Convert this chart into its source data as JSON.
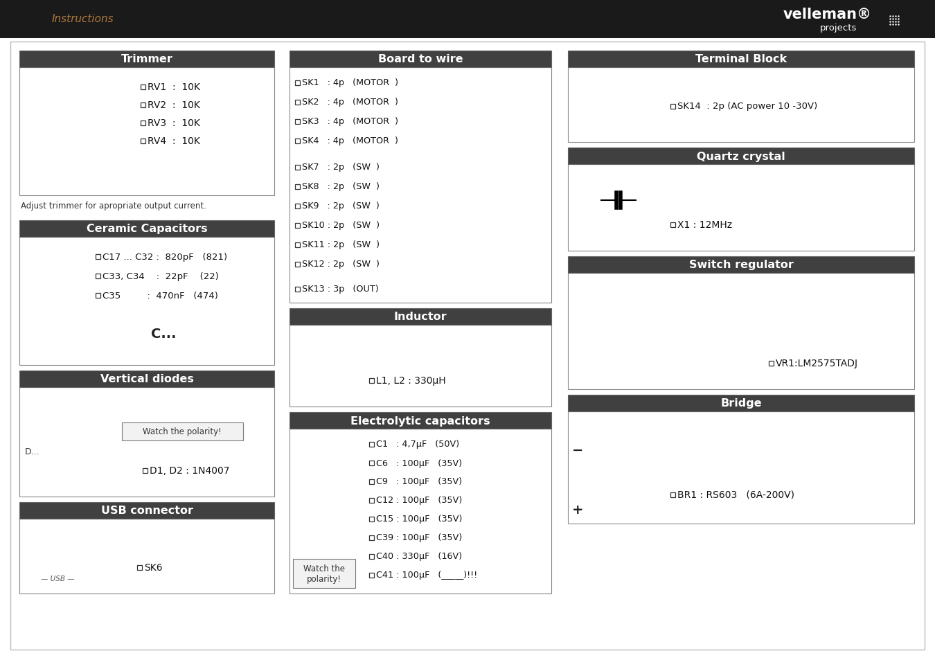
{
  "page_bg": "#ffffff",
  "section_header_bg": "#404040",
  "section_header_text_color": "#ffffff",
  "section_border_color": "#666666",
  "checkbox_color": "#222222",
  "text_color": "#111111",
  "trimmer_title": "Trimmer",
  "trimmer_items": [
    "RV1  :  10K",
    "RV2  :  10K",
    "RV3  :  10K",
    "RV4  :  10K"
  ],
  "trimmer_note": "Adjust trimmer for apropriate output current.",
  "ceramic_title": "Ceramic Capacitors",
  "ceramic_items": [
    "C17 ... C32 :  820pF   (821)",
    "C33, C34    :  22pF    (22)",
    "C35         :  470nF   (474)"
  ],
  "vertical_diodes_title": "Vertical diodes",
  "vertical_diodes_note": "Watch the polarity!",
  "vertical_diodes_items": [
    "D1, D2 : 1N4007"
  ],
  "usb_title": "USB connector",
  "usb_items": [
    "SK6"
  ],
  "board_wire_title": "Board to wire",
  "board_wire_items": [
    "SK1   : 4p   (MOTOR  )",
    "SK2   : 4p   (MOTOR  )",
    "SK3   : 4p   (MOTOR  )",
    "SK4   : 4p   (MOTOR  )",
    "SK7   : 2p   (SW  )",
    "SK8   : 2p   (SW  )",
    "SK9   : 2p   (SW  )",
    "SK10 : 2p   (SW  )",
    "SK11 : 2p   (SW  )",
    "SK12 : 2p   (SW  )",
    "SK13 : 3p   (OUT)"
  ],
  "inductor_title": "Inductor",
  "inductor_items": [
    "L1, L2 : 330μH"
  ],
  "electrolytic_title": "Electrolytic capacitors",
  "electrolytic_items": [
    "C1   : 4,7μF   (50V)",
    "C6   : 100μF   (35V)",
    "C9   : 100μF   (35V)",
    "C12 : 100μF   (35V)",
    "C15 : 100μF   (35V)",
    "C39 : 100μF   (35V)",
    "C40 : 330μF   (16V)",
    "C41 : 100μF   (_____)!!!"
  ],
  "electrolytic_note": "Watch the\npolarity!",
  "terminal_title": "Terminal Block",
  "terminal_items": [
    "SK14  : 2p (AC power 10 -30V)"
  ],
  "quartz_title": "Quartz crystal",
  "quartz_items": [
    "X1 : 12MHz"
  ],
  "switch_title": "Switch regulator",
  "switch_items": [
    "VR1:LM2575TADJ"
  ],
  "bridge_title": "Bridge",
  "bridge_items": [
    "BR1 : RS603   (6A-200V)"
  ]
}
